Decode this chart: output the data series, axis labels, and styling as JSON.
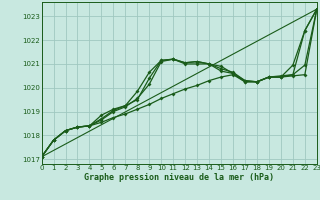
{
  "title": "Graphe pression niveau de la mer (hPa)",
  "bg_color": "#c8e8e0",
  "grid_color": "#a0c8c0",
  "line_color": "#1a5c1a",
  "xlim": [
    0,
    23
  ],
  "ylim": [
    1016.8,
    1023.6
  ],
  "yticks": [
    1017,
    1018,
    1019,
    1020,
    1021,
    1022,
    1023
  ],
  "xticks": [
    0,
    1,
    2,
    3,
    4,
    5,
    6,
    7,
    8,
    9,
    10,
    11,
    12,
    13,
    14,
    15,
    16,
    17,
    18,
    19,
    20,
    21,
    22,
    23
  ],
  "series_straight": {
    "x": [
      0,
      23
    ],
    "y": [
      1017.1,
      1023.3
    ]
  },
  "series1": {
    "x": [
      0,
      1,
      2,
      3,
      4,
      5,
      6,
      7,
      8,
      9,
      10,
      11,
      12,
      13,
      14,
      15,
      16,
      17,
      18,
      19,
      20,
      21,
      22,
      23
    ],
    "y": [
      1017.1,
      1017.8,
      1018.2,
      1018.35,
      1018.4,
      1018.55,
      1018.75,
      1018.9,
      1019.1,
      1019.3,
      1019.55,
      1019.75,
      1019.95,
      1020.1,
      1020.3,
      1020.45,
      1020.55,
      1020.25,
      1020.25,
      1020.45,
      1020.45,
      1020.5,
      1020.55,
      1023.3
    ]
  },
  "series2": {
    "x": [
      0,
      1,
      2,
      3,
      4,
      5,
      6,
      7,
      8,
      9,
      10,
      11,
      12,
      13,
      14,
      15,
      16,
      17,
      18,
      19,
      20,
      21,
      22,
      23
    ],
    "y": [
      1017.1,
      1017.8,
      1018.2,
      1018.35,
      1018.4,
      1018.65,
      1019.0,
      1019.2,
      1019.55,
      1020.15,
      1021.1,
      1021.2,
      1021.05,
      1021.1,
      1021.0,
      1020.8,
      1020.65,
      1020.3,
      1020.25,
      1020.45,
      1020.5,
      1020.55,
      1020.95,
      1023.3
    ]
  },
  "series3": {
    "x": [
      0,
      1,
      2,
      3,
      4,
      5,
      6,
      7,
      8,
      9,
      10,
      11,
      12,
      13,
      14,
      15,
      16,
      17,
      18,
      19,
      20,
      21,
      22,
      23
    ],
    "y": [
      1017.1,
      1017.8,
      1018.2,
      1018.35,
      1018.4,
      1018.7,
      1019.05,
      1019.25,
      1019.85,
      1020.65,
      1021.15,
      1021.2,
      1021.05,
      1021.1,
      1021.0,
      1020.9,
      1020.6,
      1020.3,
      1020.25,
      1020.45,
      1020.45,
      1020.55,
      1022.4,
      1023.3
    ]
  },
  "series4": {
    "x": [
      0,
      1,
      2,
      3,
      4,
      5,
      6,
      7,
      8,
      9,
      10,
      11,
      12,
      13,
      14,
      15,
      16,
      17,
      18,
      19,
      20,
      21,
      22,
      23
    ],
    "y": [
      1017.1,
      1017.8,
      1018.2,
      1018.35,
      1018.4,
      1018.85,
      1019.1,
      1019.25,
      1019.5,
      1020.4,
      1021.15,
      1021.2,
      1021.0,
      1021.0,
      1021.0,
      1020.7,
      1020.6,
      1020.25,
      1020.25,
      1020.45,
      1020.45,
      1020.95,
      1022.4,
      1023.3
    ]
  }
}
